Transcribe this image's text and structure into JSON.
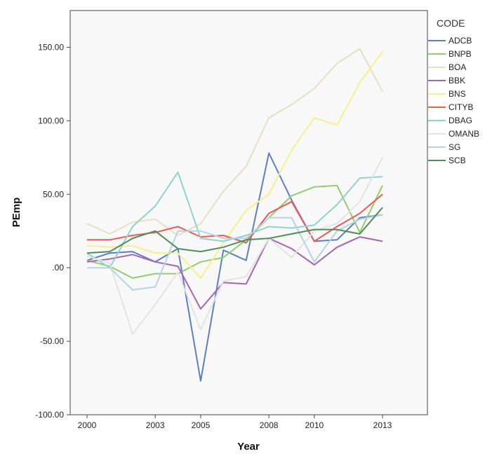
{
  "chart_data": {
    "type": "line",
    "xlabel": "Year",
    "ylabel": "PEmp",
    "x": [
      2000,
      2001,
      2002,
      2003,
      2004,
      2005,
      2006,
      2007,
      2008,
      2009,
      2010,
      2011,
      2012,
      2013
    ],
    "x_ticks": [
      2000,
      2003,
      2005,
      2008,
      2010,
      2013
    ],
    "ylim": [
      -100,
      175
    ],
    "y_ticks": [
      -100,
      -50,
      0,
      50,
      100,
      150
    ],
    "y_tick_labels": [
      "-100.00",
      "-50.00",
      ".00",
      "50.00",
      "100.00",
      "150.00"
    ],
    "grid": false,
    "legend": {
      "title": "CODE",
      "position": "right"
    },
    "series": [
      {
        "name": "ADCB",
        "color": "#5b7fc6",
        "values": [
          5,
          10,
          11,
          4,
          13,
          -77,
          12,
          5,
          78,
          46,
          18,
          19,
          34,
          36
        ]
      },
      {
        "name": "BNPB",
        "color": "#8fcf6f",
        "values": [
          5,
          1,
          -7,
          -4,
          -4,
          4,
          7,
          19,
          34,
          49,
          55,
          56,
          24,
          56
        ]
      },
      {
        "name": "BOA",
        "color": "#e8dfbd",
        "values": [
          30,
          23,
          31,
          33,
          22,
          30,
          52,
          69,
          102,
          111,
          122,
          139,
          149,
          120
        ]
      },
      {
        "name": "BBK",
        "color": "#a864b4",
        "values": [
          4,
          6,
          9,
          4,
          1,
          -28,
          -10,
          -11,
          20,
          13,
          2,
          14,
          21,
          18
        ]
      },
      {
        "name": "BNS",
        "color": "#f7ef8a",
        "values": [
          15,
          14,
          15,
          10,
          10,
          -7,
          17,
          39,
          50,
          80,
          102,
          97,
          126,
          147
        ]
      },
      {
        "name": "CITYB",
        "color": "#ee5a55",
        "values": [
          19,
          19,
          22,
          24,
          28,
          21,
          22,
          17,
          37,
          45,
          18,
          28,
          37,
          50
        ]
      },
      {
        "name": "DBAG",
        "color": "#8fd4cc",
        "values": [
          10,
          0,
          28,
          42,
          65,
          20,
          18,
          22,
          28,
          27,
          29,
          43,
          61,
          62
        ]
      },
      {
        "name": "OMANB",
        "color": "#e3e3e3",
        "values": [
          8,
          3,
          -45,
          -25,
          -3,
          -42,
          -9,
          -6,
          20,
          7,
          25,
          30,
          45,
          75
        ]
      },
      {
        "name": "SG",
        "color": "#b3d4e8",
        "values": [
          0,
          0,
          -15,
          -13,
          25,
          25,
          20,
          20,
          34,
          34,
          4,
          25,
          33,
          36
        ]
      },
      {
        "name": "SCB",
        "color": "#4f8f57",
        "values": [
          10,
          11,
          20,
          25,
          13,
          11,
          14,
          19,
          20,
          23,
          26,
          26,
          23,
          41
        ]
      }
    ]
  }
}
